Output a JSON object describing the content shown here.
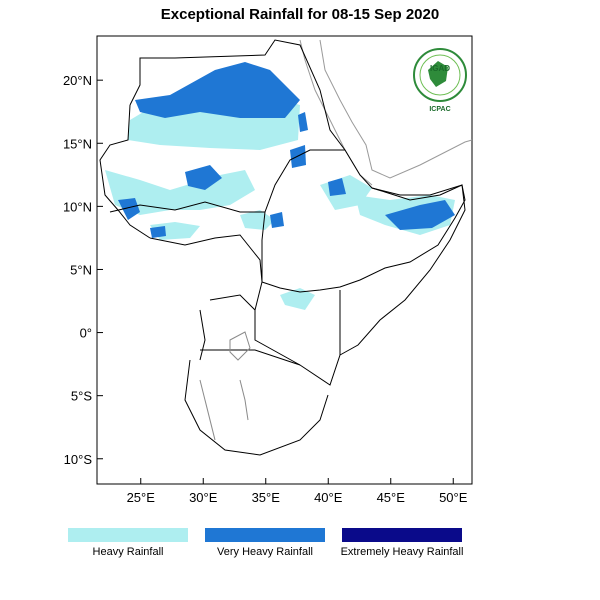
{
  "title": "Exceptional Rainfall for 08-15 Sep 2020",
  "axes": {
    "lat_ticks": [
      {
        "value": 20,
        "label": "20°N"
      },
      {
        "value": 15,
        "label": "15°N"
      },
      {
        "value": 10,
        "label": "10°N"
      },
      {
        "value": 5,
        "label": "5°N"
      },
      {
        "value": 0,
        "label": "0°"
      },
      {
        "value": -5,
        "label": "5°S"
      },
      {
        "value": -10,
        "label": "10°S"
      }
    ],
    "lon_ticks": [
      {
        "value": 25,
        "label": "25°E"
      },
      {
        "value": 30,
        "label": "30°E"
      },
      {
        "value": 35,
        "label": "35°E"
      },
      {
        "value": 40,
        "label": "40°E"
      },
      {
        "value": 45,
        "label": "45°E"
      },
      {
        "value": 50,
        "label": "50°E"
      }
    ],
    "lon_range": [
      21.5,
      51.5
    ],
    "lat_range": [
      -12,
      23.5
    ]
  },
  "legend": [
    {
      "label": "Heavy Rainfall",
      "color": "#aeeef0"
    },
    {
      "label": "Very Heavy Rainfall",
      "color": "#1f77d4"
    },
    {
      "label": "Extremely Heavy Rainfall",
      "color": "#0a0a8a"
    }
  ],
  "logo": {
    "top_text": "IGAD",
    "bottom_text": "ICPAC"
  },
  "colors": {
    "heavy": "#aeeef0",
    "very_heavy": "#1f77d4",
    "extreme": "#0a0a8a",
    "border": "#000000",
    "coast": "#888888"
  }
}
